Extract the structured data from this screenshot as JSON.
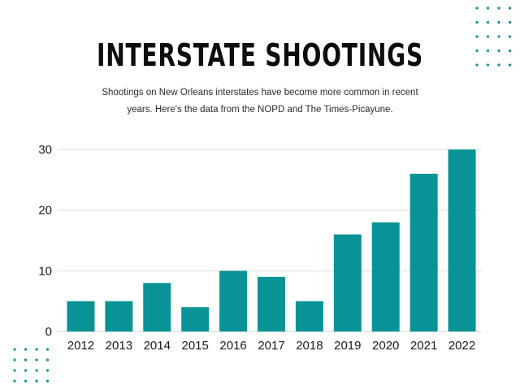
{
  "header": {
    "title": "INTERSTATE SHOOTINGS",
    "subtitle": "Shootings on New Orleans interstates have become more common in recent years. Here's the data from the NOPD and The Times-Picayune."
  },
  "colors": {
    "bar": "#0a9396",
    "dots": "#0a9396",
    "grid": "#d9d9d9",
    "text": "#1a1a1a"
  },
  "chart_data": {
    "type": "bar",
    "title": "INTERSTATE SHOOTINGS",
    "subtitle": "Shootings on New Orleans interstates have become more common in recent years. Here's the data from the NOPD and The Times-Picayune.",
    "categories": [
      "2012",
      "2013",
      "2014",
      "2015",
      "2016",
      "2017",
      "2018",
      "2019",
      "2020",
      "2021",
      "2022"
    ],
    "values": [
      5,
      5,
      8,
      4,
      10,
      9,
      5,
      16,
      18,
      26,
      30
    ],
    "xlabel": "",
    "ylabel": "",
    "ylim": [
      0,
      30
    ],
    "yticks": [
      0,
      10,
      20,
      30
    ],
    "grid": true,
    "legend": "none"
  }
}
